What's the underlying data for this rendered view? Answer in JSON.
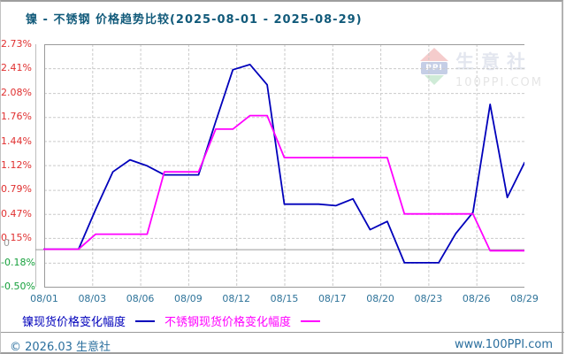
{
  "window": {
    "title": "镍 - 不锈钢 价格趋势比较(2025-08-01 - 2025-08-29)"
  },
  "watermark": {
    "logo_text": "PPI",
    "brand": "生意社",
    "site": "100PPI.COM"
  },
  "axis_colors": {
    "positive": "#e03030",
    "negative": "#16a03c",
    "zero": "#9a9a9a",
    "x_labels": "#2e7399"
  },
  "zero_label": "0",
  "legend": {
    "items": [
      {
        "label": "镍现货价格变化幅度",
        "color": "#0000bb"
      },
      {
        "label": "不锈钢现货价格变化幅度",
        "color": "#ff00ff"
      }
    ]
  },
  "footer": {
    "copyright": "© 2026.03 生意社",
    "website": "www.100PPI.com"
  },
  "chart_data": {
    "type": "line",
    "title": "镍 - 不锈钢 价格趋势比较(2025-08-01 - 2025-08-29)",
    "date_range": [
      "2025-08-01",
      "2025-08-29"
    ],
    "unit": "%",
    "grid": "dashed",
    "zero_line": true,
    "legend_position": "bottom",
    "ylim": [
      -0.5,
      2.73
    ],
    "y_tick_labels": [
      "2.73%",
      "2.41%",
      "2.08%",
      "1.76%",
      "1.44%",
      "1.12%",
      "0.79%",
      "0.47%",
      "0.15%",
      "-0.18%",
      "-0.50%"
    ],
    "y_tick_values": [
      2.73,
      2.41,
      2.08,
      1.76,
      1.44,
      1.12,
      0.79,
      0.47,
      0.15,
      -0.18,
      -0.5
    ],
    "x_tick_labels": [
      "08/01",
      "08/03",
      "08/06",
      "08/09",
      "08/12",
      "08/15",
      "08/17",
      "08/20",
      "08/23",
      "08/26",
      "08/29"
    ],
    "x": [
      "08/01",
      "08/02",
      "08/03",
      "08/04",
      "08/05",
      "08/06",
      "08/07",
      "08/08",
      "08/09",
      "08/10",
      "08/11",
      "08/12",
      "08/13",
      "08/14",
      "08/15",
      "08/16",
      "08/17",
      "08/18",
      "08/19",
      "08/20",
      "08/21",
      "08/22",
      "08/23",
      "08/24",
      "08/25",
      "08/26",
      "08/27",
      "08/28",
      "08/29"
    ],
    "series": [
      {
        "name": "镍现货价格变化幅度",
        "color": "#0000bb",
        "values": [
          0,
          0,
          0,
          0.53,
          1.03,
          1.19,
          1.11,
          0.99,
          0.99,
          0.99,
          1.7,
          2.39,
          2.46,
          2.19,
          0.6,
          0.6,
          0.6,
          0.58,
          0.67,
          0.26,
          0.37,
          -0.18,
          -0.18,
          -0.18,
          0.21,
          0.49,
          1.93,
          0.69,
          1.15
        ]
      },
      {
        "name": "不锈钢现货价格变化幅度",
        "color": "#ff00ff",
        "values": [
          0,
          0,
          0,
          0.2,
          0.2,
          0.2,
          0.2,
          1.03,
          1.03,
          1.03,
          1.6,
          1.6,
          1.78,
          1.78,
          1.22,
          1.22,
          1.22,
          1.22,
          1.22,
          1.22,
          1.22,
          0.47,
          0.47,
          0.47,
          0.47,
          0.47,
          -0.02,
          -0.02,
          -0.02
        ]
      }
    ]
  }
}
